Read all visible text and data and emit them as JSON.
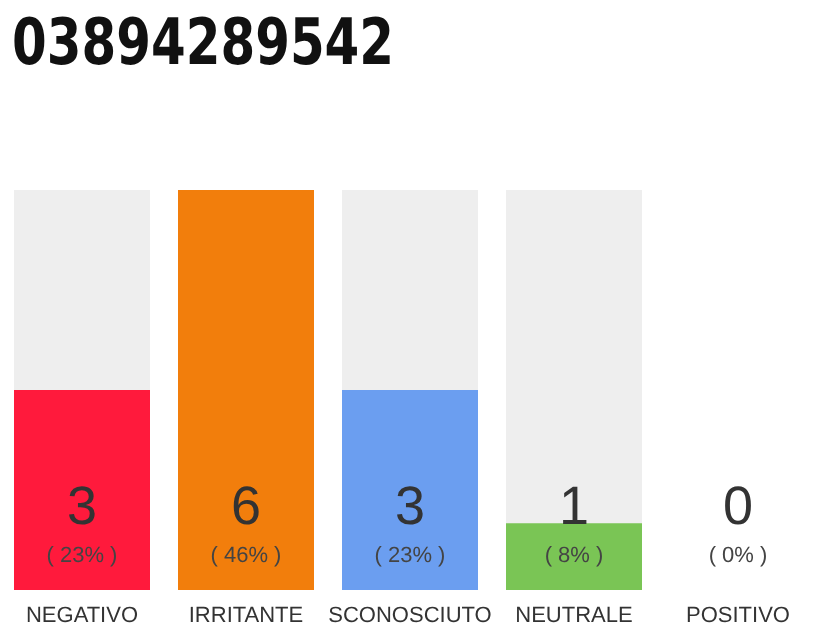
{
  "chart_data": {
    "type": "bar",
    "title": "03894289542",
    "categories": [
      "NEGATIVO",
      "IRRITANTE",
      "SCONOSCIUTO",
      "NEUTRALE",
      "POSITIVO"
    ],
    "values": [
      3,
      6,
      3,
      1,
      0
    ],
    "colors": [
      "#ff1a3c",
      "#f27e0c",
      "#6b9ef0",
      "#7ac555",
      "#d8d8d8"
    ],
    "data_labels": true,
    "annotations": [
      "( 23% )",
      "( 46% )",
      "( 23% )",
      "( 8% )",
      "( 0% )"
    ],
    "grid": false,
    "legend": false
  }
}
